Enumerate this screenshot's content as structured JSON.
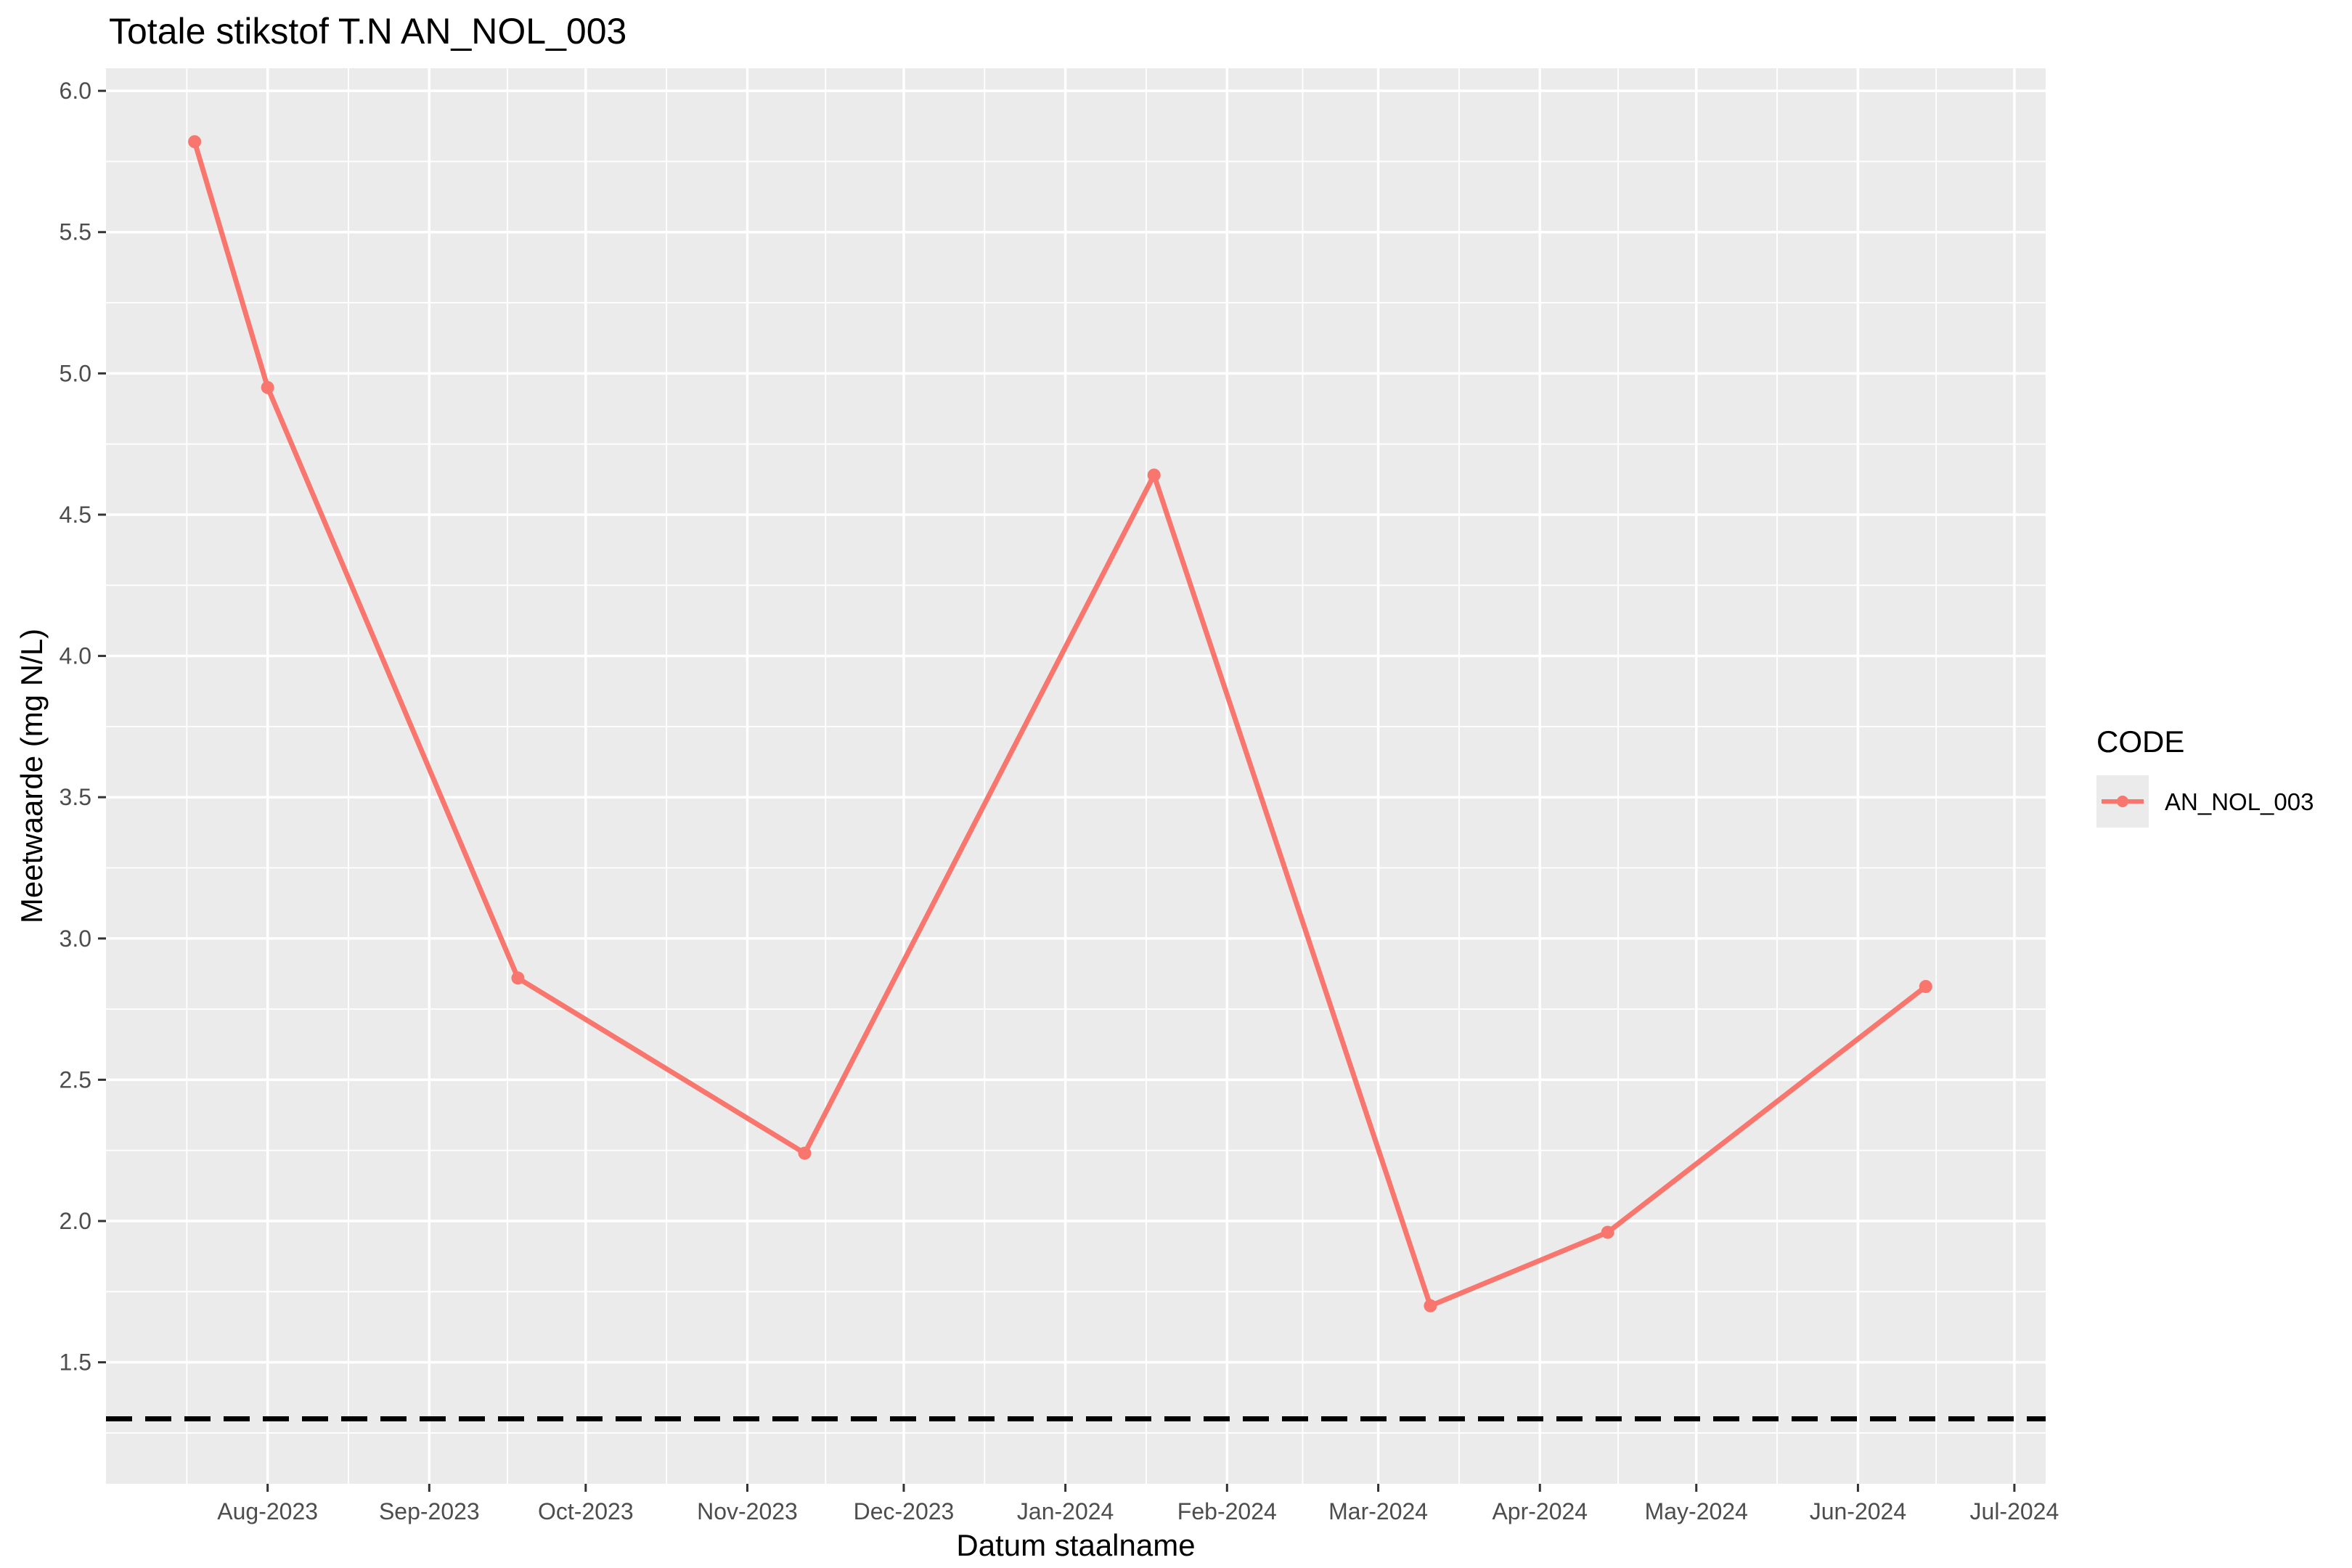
{
  "chart_data": {
    "type": "line",
    "title": "Totale stikstof T.N AN_NOL_003",
    "xlabel": "Datum staalname",
    "ylabel": "Meetwaarde (mg N/L)",
    "x_ticks": [
      {
        "date": "2023-08-01",
        "label": "Aug-2023"
      },
      {
        "date": "2023-09-01",
        "label": "Sep-2023"
      },
      {
        "date": "2023-10-01",
        "label": "Oct-2023"
      },
      {
        "date": "2023-11-01",
        "label": "Nov-2023"
      },
      {
        "date": "2023-12-01",
        "label": "Dec-2023"
      },
      {
        "date": "2024-01-01",
        "label": "Jan-2024"
      },
      {
        "date": "2024-02-01",
        "label": "Feb-2024"
      },
      {
        "date": "2024-03-01",
        "label": "Mar-2024"
      },
      {
        "date": "2024-04-01",
        "label": "Apr-2024"
      },
      {
        "date": "2024-05-01",
        "label": "May-2024"
      },
      {
        "date": "2024-06-01",
        "label": "Jun-2024"
      },
      {
        "date": "2024-07-01",
        "label": "Jul-2024"
      }
    ],
    "y_ticks": [
      "1.5",
      "2.0",
      "2.5",
      "3.0",
      "3.5",
      "4.0",
      "4.5",
      "5.0",
      "5.5",
      "6.0"
    ],
    "xlim": [
      "2023-07-01",
      "2024-07-07"
    ],
    "ylim": [
      1.07,
      6.08
    ],
    "grid": true,
    "legend": {
      "title": "CODE",
      "position": "right"
    },
    "series": [
      {
        "name": "AN_NOL_003",
        "color": "#F8766D",
        "points": [
          {
            "x": "2023-07-18",
            "y": 5.82
          },
          {
            "x": "2023-08-01",
            "y": 4.95
          },
          {
            "x": "2023-09-18",
            "y": 2.86
          },
          {
            "x": "2023-11-12",
            "y": 2.24
          },
          {
            "x": "2024-01-18",
            "y": 4.64
          },
          {
            "x": "2024-03-11",
            "y": 1.7
          },
          {
            "x": "2024-04-14",
            "y": 1.96
          },
          {
            "x": "2024-06-14",
            "y": 2.83
          }
        ]
      }
    ],
    "reference_line": {
      "y": 1.3,
      "style": "dashed",
      "color": "#000000"
    }
  }
}
